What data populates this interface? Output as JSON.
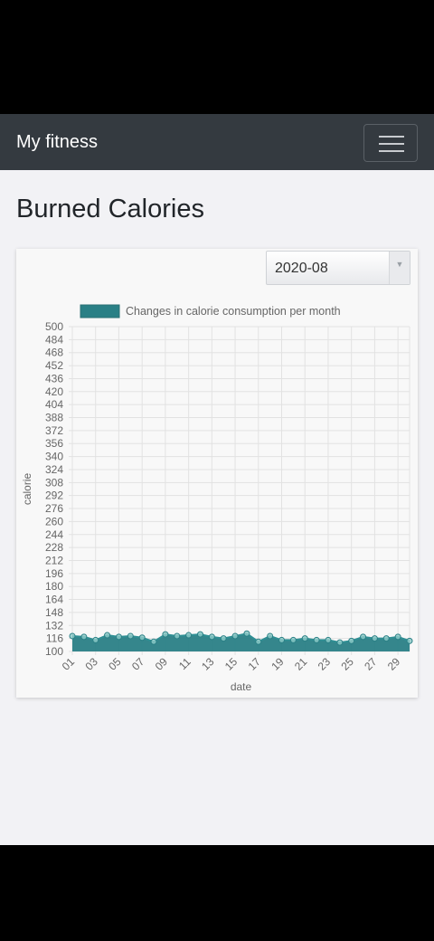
{
  "navbar": {
    "brand": "My fitness",
    "menu_icon": "hamburger-menu-icon"
  },
  "page": {
    "title": "Burned Calories"
  },
  "month_select": {
    "value": "2020-08"
  },
  "colors": {
    "navbar_bg": "#343a40",
    "series_fill": "#2a8086",
    "series_line": "#2f8f94",
    "page_bg": "#f2f2f5"
  },
  "chart_data": {
    "type": "area",
    "legend": "Changes in calorie consumption per month",
    "legend_position": "top",
    "xlabel": "date",
    "ylabel": "calorie",
    "x": [
      "01",
      "02",
      "03",
      "04",
      "05",
      "06",
      "07",
      "08",
      "09",
      "10",
      "11",
      "12",
      "13",
      "14",
      "15",
      "16",
      "17",
      "18",
      "19",
      "20",
      "21",
      "22",
      "23",
      "24",
      "25",
      "26",
      "27",
      "28",
      "29",
      "30"
    ],
    "x_tick_labels": [
      "01",
      "03",
      "05",
      "07",
      "09",
      "11",
      "13",
      "15",
      "17",
      "19",
      "21",
      "23",
      "25",
      "27",
      "29"
    ],
    "y_ticks": [
      100,
      116,
      132,
      148,
      164,
      180,
      196,
      212,
      228,
      244,
      260,
      276,
      292,
      308,
      324,
      340,
      356,
      372,
      388,
      404,
      420,
      436,
      452,
      468,
      484,
      500
    ],
    "ylim": [
      100,
      500
    ],
    "grid": true,
    "series": [
      {
        "name": "Changes in calorie consumption per month",
        "values": [
          119,
          118,
          114,
          120,
          118,
          119,
          117,
          112,
          121,
          119,
          120,
          121,
          118,
          116,
          119,
          122,
          112,
          119,
          114,
          114,
          116,
          114,
          114,
          111,
          113,
          118,
          116,
          116,
          118,
          113
        ]
      }
    ]
  }
}
